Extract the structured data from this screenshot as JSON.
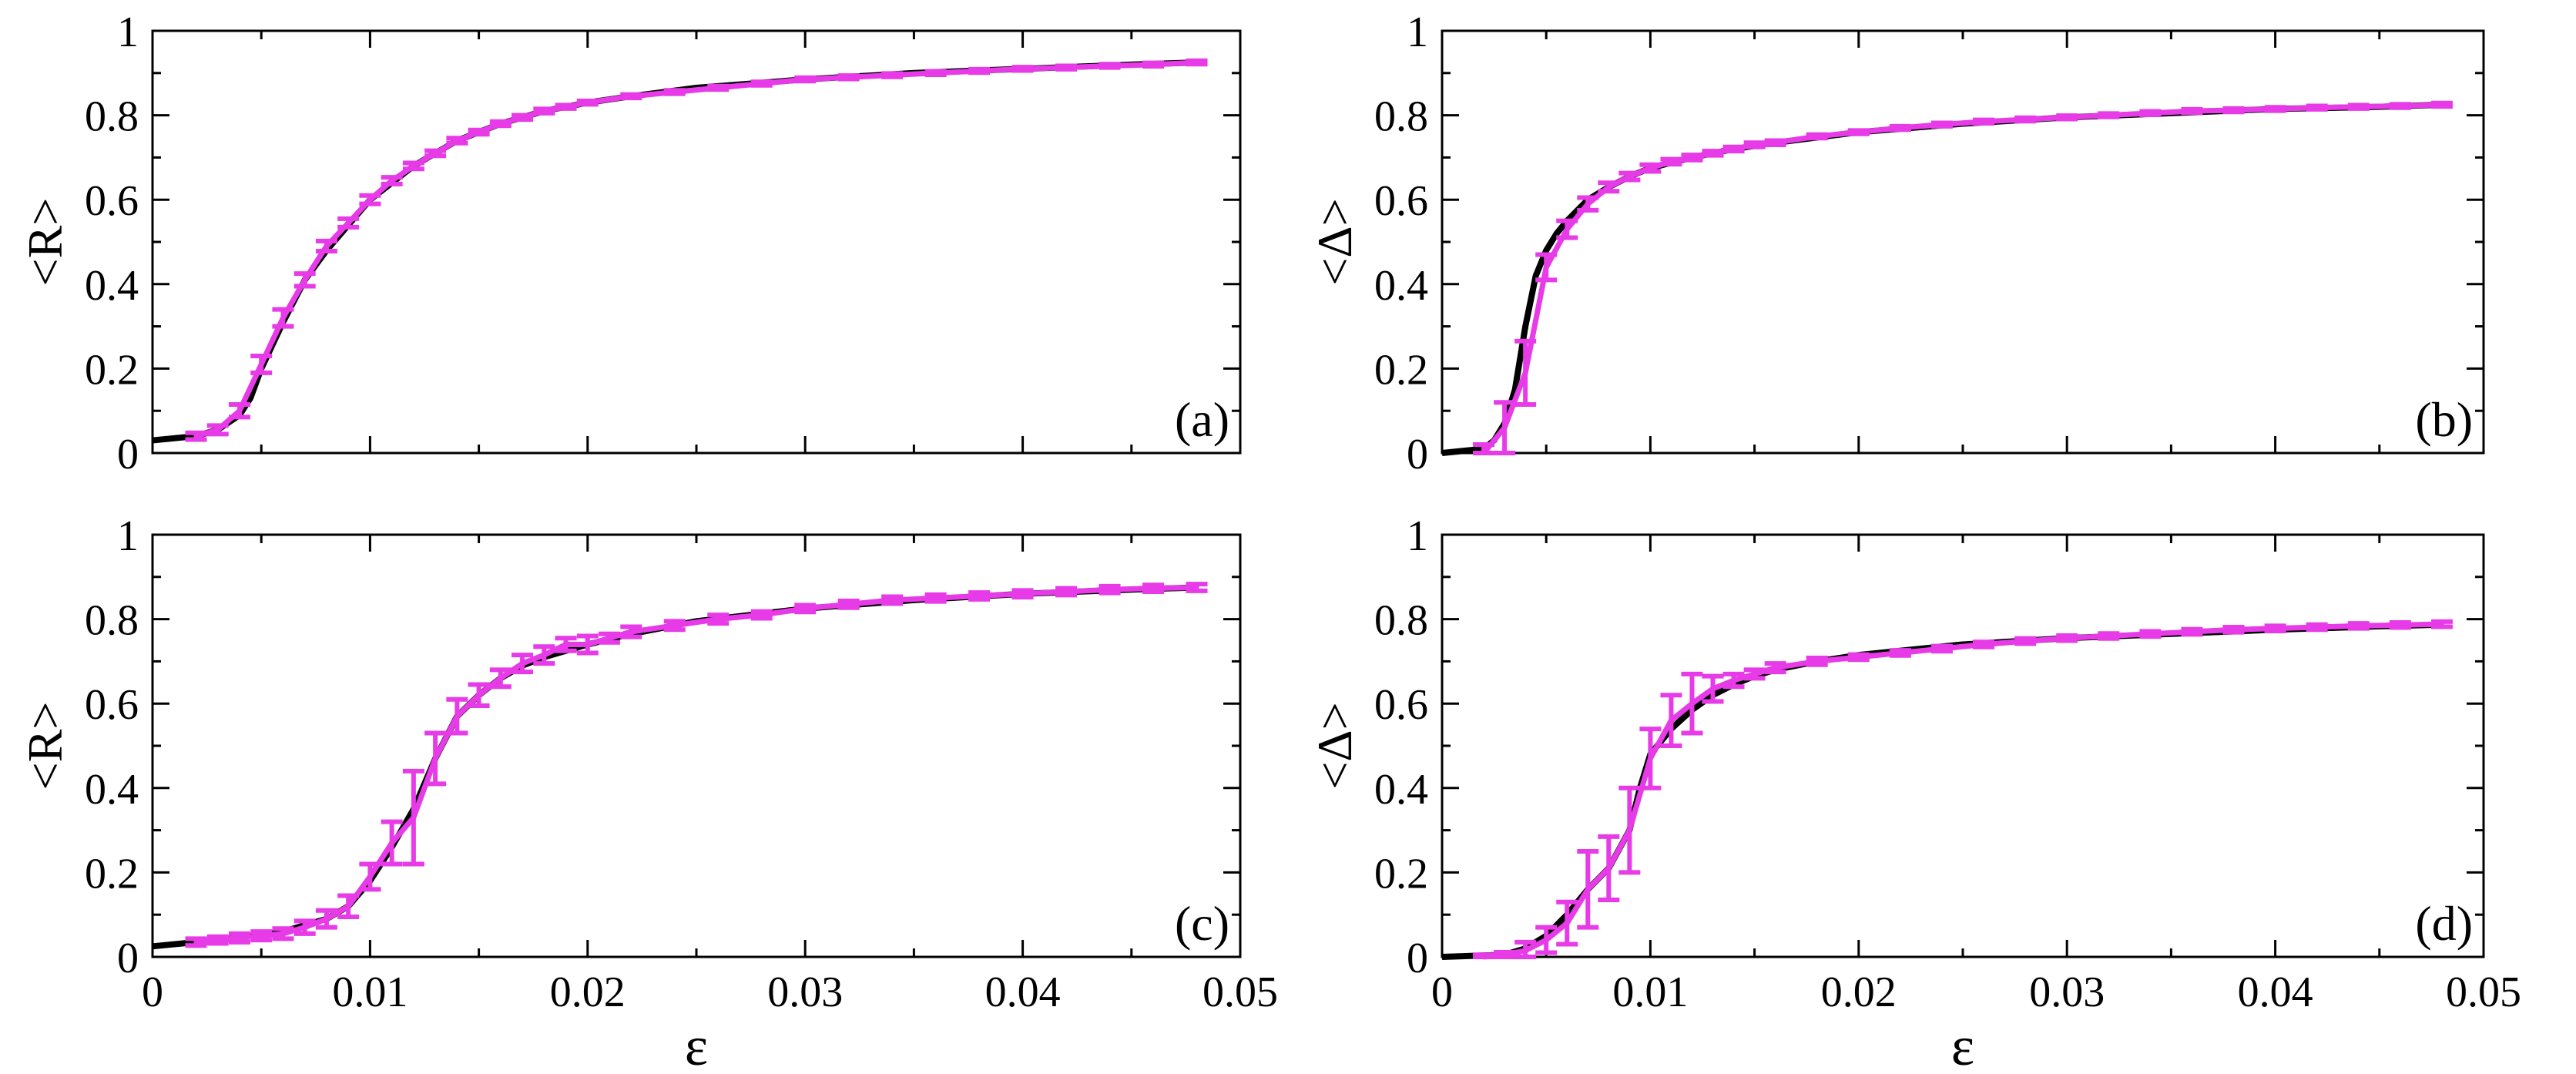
{
  "figure": {
    "shared_xlabel": "ε"
  },
  "chart_data": [
    {
      "id": "a",
      "type": "line",
      "panel_label": "(a)",
      "ylabel": "<R>",
      "xlabel": "",
      "xlim": [
        0,
        0.05
      ],
      "ylim": [
        0,
        1
      ],
      "xticks": [],
      "xtick_labels": [],
      "yticks": [
        0,
        0.2,
        0.4,
        0.6,
        0.8,
        1
      ],
      "ytick_labels": [
        "0",
        "0.2",
        "0.4",
        "0.6",
        "0.8",
        "1"
      ],
      "series": [
        {
          "name": "black curve",
          "color": "#000000",
          "x": [
            0,
            0.002,
            0.003,
            0.004,
            0.0045,
            0.005,
            0.006,
            0.007,
            0.008,
            0.009,
            0.01,
            0.011,
            0.012,
            0.013,
            0.014,
            0.015,
            0.016,
            0.018,
            0.02,
            0.022,
            0.025,
            0.03,
            0.035,
            0.04,
            0.045,
            0.048
          ],
          "y": [
            0.03,
            0.04,
            0.055,
            0.09,
            0.13,
            0.2,
            0.31,
            0.41,
            0.48,
            0.54,
            0.6,
            0.64,
            0.68,
            0.71,
            0.74,
            0.76,
            0.78,
            0.81,
            0.83,
            0.845,
            0.865,
            0.885,
            0.9,
            0.91,
            0.92,
            0.925
          ]
        },
        {
          "name": "magenta error bars",
          "color": "#e83be8",
          "x": [
            0.002,
            0.003,
            0.004,
            0.005,
            0.006,
            0.007,
            0.008,
            0.009,
            0.01,
            0.011,
            0.012,
            0.013,
            0.014,
            0.015,
            0.016,
            0.017,
            0.018,
            0.019,
            0.02,
            0.022,
            0.024,
            0.026,
            0.028,
            0.03,
            0.032,
            0.034,
            0.036,
            0.038,
            0.04,
            0.042,
            0.044,
            0.046,
            0.048
          ],
          "y": [
            0.04,
            0.055,
            0.1,
            0.21,
            0.32,
            0.41,
            0.49,
            0.545,
            0.6,
            0.645,
            0.68,
            0.71,
            0.74,
            0.76,
            0.78,
            0.795,
            0.81,
            0.82,
            0.83,
            0.845,
            0.855,
            0.865,
            0.875,
            0.885,
            0.89,
            0.895,
            0.9,
            0.905,
            0.91,
            0.913,
            0.917,
            0.92,
            0.925
          ],
          "err": [
            0.008,
            0.01,
            0.015,
            0.02,
            0.02,
            0.015,
            0.012,
            0.01,
            0.01,
            0.008,
            0.007,
            0.006,
            0.006,
            0.005,
            0.005,
            0.005,
            0.005,
            0.004,
            0.004,
            0.004,
            0.004,
            0.004,
            0.004,
            0.004,
            0.004,
            0.004,
            0.004,
            0.004,
            0.004,
            0.004,
            0.004,
            0.004,
            0.004
          ]
        }
      ]
    },
    {
      "id": "b",
      "type": "line",
      "panel_label": "(b)",
      "ylabel": "<Δ>",
      "xlabel": "",
      "xlim": [
        0,
        0.05
      ],
      "ylim": [
        0,
        1
      ],
      "xticks": [],
      "xtick_labels": [],
      "yticks": [
        0,
        0.2,
        0.4,
        0.6,
        0.8,
        1
      ],
      "ytick_labels": [
        "0",
        "0.2",
        "0.4",
        "0.6",
        "0.8",
        "1"
      ],
      "series": [
        {
          "name": "black curve",
          "color": "#000000",
          "x": [
            0,
            0.002,
            0.0025,
            0.003,
            0.0035,
            0.004,
            0.0045,
            0.005,
            0.0055,
            0.006,
            0.007,
            0.008,
            0.009,
            0.01,
            0.012,
            0.014,
            0.016,
            0.02,
            0.025,
            0.03,
            0.035,
            0.04,
            0.045,
            0.048
          ],
          "y": [
            0.0,
            0.01,
            0.03,
            0.07,
            0.15,
            0.3,
            0.42,
            0.48,
            0.52,
            0.55,
            0.6,
            0.63,
            0.655,
            0.675,
            0.7,
            0.72,
            0.735,
            0.76,
            0.78,
            0.795,
            0.805,
            0.815,
            0.82,
            0.825
          ]
        },
        {
          "name": "magenta error bars",
          "color": "#e83be8",
          "x": [
            0.002,
            0.003,
            0.004,
            0.005,
            0.006,
            0.007,
            0.008,
            0.009,
            0.01,
            0.011,
            0.012,
            0.013,
            0.014,
            0.015,
            0.016,
            0.018,
            0.02,
            0.022,
            0.024,
            0.026,
            0.028,
            0.03,
            0.032,
            0.034,
            0.036,
            0.038,
            0.04,
            0.042,
            0.044,
            0.046,
            0.048
          ],
          "y": [
            0.0,
            0.06,
            0.19,
            0.44,
            0.53,
            0.59,
            0.63,
            0.655,
            0.675,
            0.69,
            0.7,
            0.71,
            0.72,
            0.73,
            0.735,
            0.75,
            0.76,
            0.77,
            0.778,
            0.785,
            0.79,
            0.795,
            0.8,
            0.805,
            0.81,
            0.812,
            0.815,
            0.818,
            0.82,
            0.822,
            0.825
          ],
          "err": [
            0.02,
            0.06,
            0.075,
            0.03,
            0.02,
            0.015,
            0.01,
            0.008,
            0.008,
            0.006,
            0.006,
            0.005,
            0.005,
            0.005,
            0.005,
            0.004,
            0.004,
            0.004,
            0.004,
            0.004,
            0.004,
            0.004,
            0.004,
            0.004,
            0.004,
            0.004,
            0.004,
            0.004,
            0.004,
            0.004,
            0.004
          ]
        }
      ]
    },
    {
      "id": "c",
      "type": "line",
      "panel_label": "(c)",
      "ylabel": "<R>",
      "xlabel": "ε",
      "xlim": [
        0,
        0.05
      ],
      "ylim": [
        0,
        1
      ],
      "xticks": [
        0,
        0.01,
        0.02,
        0.03,
        0.04,
        0.05
      ],
      "xtick_labels": [
        "0",
        "0.01",
        "0.02",
        "0.03",
        "0.04",
        "0.05"
      ],
      "yticks": [
        0,
        0.2,
        0.4,
        0.6,
        0.8,
        1
      ],
      "ytick_labels": [
        "0",
        "0.2",
        "0.4",
        "0.6",
        "0.8",
        "1"
      ],
      "series": [
        {
          "name": "black curve",
          "color": "#000000",
          "x": [
            0,
            0.004,
            0.006,
            0.008,
            0.009,
            0.01,
            0.011,
            0.012,
            0.013,
            0.014,
            0.015,
            0.016,
            0.017,
            0.018,
            0.02,
            0.022,
            0.025,
            0.03,
            0.035,
            0.04,
            0.045,
            0.048
          ],
          "y": [
            0.025,
            0.045,
            0.06,
            0.09,
            0.12,
            0.18,
            0.26,
            0.35,
            0.47,
            0.57,
            0.62,
            0.66,
            0.69,
            0.71,
            0.74,
            0.765,
            0.795,
            0.825,
            0.845,
            0.86,
            0.87,
            0.875
          ]
        },
        {
          "name": "magenta error bars",
          "color": "#e83be8",
          "x": [
            0.002,
            0.003,
            0.004,
            0.005,
            0.006,
            0.007,
            0.008,
            0.009,
            0.01,
            0.011,
            0.012,
            0.013,
            0.014,
            0.015,
            0.016,
            0.017,
            0.018,
            0.019,
            0.02,
            0.021,
            0.022,
            0.024,
            0.026,
            0.028,
            0.03,
            0.032,
            0.034,
            0.036,
            0.038,
            0.04,
            0.042,
            0.044,
            0.046,
            0.048
          ],
          "y": [
            0.035,
            0.04,
            0.045,
            0.05,
            0.055,
            0.07,
            0.09,
            0.12,
            0.19,
            0.27,
            0.33,
            0.47,
            0.57,
            0.62,
            0.66,
            0.695,
            0.715,
            0.74,
            0.74,
            0.755,
            0.77,
            0.785,
            0.8,
            0.81,
            0.825,
            0.835,
            0.845,
            0.85,
            0.855,
            0.86,
            0.865,
            0.87,
            0.873,
            0.875
          ],
          "err": [
            0.008,
            0.008,
            0.01,
            0.01,
            0.012,
            0.015,
            0.02,
            0.025,
            0.03,
            0.05,
            0.11,
            0.06,
            0.04,
            0.025,
            0.02,
            0.02,
            0.02,
            0.015,
            0.02,
            0.01,
            0.012,
            0.01,
            0.01,
            0.008,
            0.008,
            0.008,
            0.008,
            0.008,
            0.008,
            0.008,
            0.008,
            0.008,
            0.008,
            0.008
          ]
        }
      ]
    },
    {
      "id": "d",
      "type": "line",
      "panel_label": "(d)",
      "ylabel": "<Δ>",
      "xlabel": "ε",
      "xlim": [
        0,
        0.05
      ],
      "ylim": [
        0,
        1
      ],
      "xticks": [
        0,
        0.01,
        0.02,
        0.03,
        0.04,
        0.05
      ],
      "xtick_labels": [
        "0",
        "0.01",
        "0.02",
        "0.03",
        "0.04",
        "0.05"
      ],
      "yticks": [
        0,
        0.2,
        0.4,
        0.6,
        0.8,
        1
      ],
      "ytick_labels": [
        "0",
        "0.2",
        "0.4",
        "0.6",
        "0.8",
        "1"
      ],
      "series": [
        {
          "name": "black curve",
          "color": "#000000",
          "x": [
            0,
            0.003,
            0.004,
            0.005,
            0.006,
            0.007,
            0.008,
            0.009,
            0.0095,
            0.01,
            0.011,
            0.012,
            0.013,
            0.014,
            0.015,
            0.016,
            0.018,
            0.02,
            0.025,
            0.03,
            0.035,
            0.04,
            0.045,
            0.048
          ],
          "y": [
            0.0,
            0.005,
            0.02,
            0.05,
            0.1,
            0.16,
            0.21,
            0.3,
            0.4,
            0.48,
            0.54,
            0.585,
            0.62,
            0.645,
            0.665,
            0.68,
            0.7,
            0.715,
            0.74,
            0.755,
            0.765,
            0.775,
            0.783,
            0.787
          ]
        },
        {
          "name": "magenta error bars",
          "color": "#e83be8",
          "x": [
            0.002,
            0.003,
            0.004,
            0.005,
            0.006,
            0.007,
            0.008,
            0.009,
            0.01,
            0.011,
            0.012,
            0.013,
            0.014,
            0.015,
            0.016,
            0.018,
            0.02,
            0.022,
            0.024,
            0.026,
            0.028,
            0.03,
            0.032,
            0.034,
            0.036,
            0.038,
            0.04,
            0.042,
            0.044,
            0.046,
            0.048
          ],
          "y": [
            0.0,
            0.005,
            0.015,
            0.04,
            0.08,
            0.16,
            0.21,
            0.3,
            0.47,
            0.56,
            0.6,
            0.635,
            0.655,
            0.67,
            0.685,
            0.7,
            0.71,
            0.72,
            0.73,
            0.74,
            0.748,
            0.755,
            0.76,
            0.765,
            0.77,
            0.775,
            0.778,
            0.781,
            0.784,
            0.786,
            0.788
          ],
          "err": [
            0.005,
            0.006,
            0.02,
            0.03,
            0.05,
            0.09,
            0.075,
            0.1,
            0.07,
            0.06,
            0.07,
            0.03,
            0.015,
            0.01,
            0.01,
            0.008,
            0.006,
            0.006,
            0.006,
            0.006,
            0.006,
            0.006,
            0.006,
            0.006,
            0.006,
            0.006,
            0.006,
            0.006,
            0.006,
            0.006,
            0.006
          ]
        }
      ]
    }
  ]
}
